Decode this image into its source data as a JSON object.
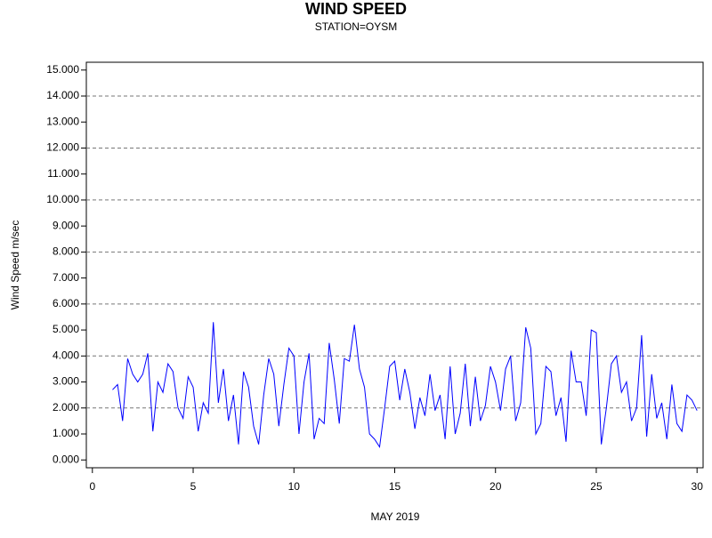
{
  "chart_data": {
    "type": "line",
    "title": "WIND SPEED",
    "subtitle": "STATION=OYSM",
    "x_label": "MAY 2019",
    "y_label": "Wind Speed m/sec",
    "xlim": [
      -0.3,
      30.3
    ],
    "xticks": [
      0,
      5,
      10,
      15,
      20,
      25,
      30
    ],
    "ylim": [
      -0.3,
      15.3
    ],
    "yticks": [
      {
        "value": 0,
        "label": "0.000"
      },
      {
        "value": 1,
        "label": "1.000"
      },
      {
        "value": 2,
        "label": "2.000"
      },
      {
        "value": 3,
        "label": "3.000"
      },
      {
        "value": 4,
        "label": "4.000"
      },
      {
        "value": 5,
        "label": "5.000"
      },
      {
        "value": 6,
        "label": "6.000"
      },
      {
        "value": 7,
        "label": "7.000"
      },
      {
        "value": 8,
        "label": "8.000"
      },
      {
        "value": 9,
        "label": "9.000"
      },
      {
        "value": 10,
        "label": "10.000"
      },
      {
        "value": 11,
        "label": "11.000"
      },
      {
        "value": 12,
        "label": "12.000"
      },
      {
        "value": 13,
        "label": "13.000"
      },
      {
        "value": 14,
        "label": "14.000"
      },
      {
        "value": 15,
        "label": "15.000"
      }
    ],
    "grid_every": 2,
    "grid": true,
    "series": [
      {
        "color": "#0000ff",
        "x": [
          1,
          1.25,
          1.5,
          1.75,
          2,
          2.25,
          2.5,
          2.75,
          3,
          3.25,
          3.5,
          3.75,
          4,
          4.25,
          4.5,
          4.75,
          5,
          5.25,
          5.5,
          5.75,
          6,
          6.25,
          6.5,
          6.75,
          7,
          7.25,
          7.5,
          7.75,
          8,
          8.25,
          8.5,
          8.75,
          9,
          9.25,
          9.5,
          9.75,
          10,
          10.25,
          10.5,
          10.75,
          11,
          11.25,
          11.5,
          11.75,
          12,
          12.25,
          12.5,
          12.75,
          13,
          13.25,
          13.5,
          13.75,
          14,
          14.25,
          14.5,
          14.75,
          15,
          15.25,
          15.5,
          15.75,
          16,
          16.25,
          16.5,
          16.75,
          17,
          17.25,
          17.5,
          17.75,
          18,
          18.25,
          18.5,
          18.75,
          19,
          19.25,
          19.5,
          19.75,
          20,
          20.25,
          20.5,
          20.75,
          21,
          21.25,
          21.5,
          21.75,
          22,
          22.25,
          22.5,
          22.75,
          23,
          23.25,
          23.5,
          23.75,
          24,
          24.25,
          24.5,
          24.75,
          25,
          25.25,
          25.5,
          25.75,
          26,
          26.25,
          26.5,
          26.75,
          27,
          27.25,
          27.5,
          27.75,
          28,
          28.25,
          28.5,
          28.75,
          29,
          29.25,
          29.5,
          29.75,
          30
        ],
        "values": [
          2.7,
          2.9,
          1.5,
          3.9,
          3.3,
          3.0,
          3.3,
          4.1,
          1.1,
          3.0,
          2.6,
          3.7,
          3.4,
          2.0,
          1.6,
          3.2,
          2.8,
          1.1,
          2.2,
          1.8,
          5.3,
          2.2,
          3.5,
          1.5,
          2.5,
          0.6,
          3.4,
          2.8,
          1.3,
          0.6,
          2.5,
          3.9,
          3.3,
          1.3,
          2.9,
          4.3,
          4.0,
          1.0,
          3.0,
          4.1,
          0.8,
          1.6,
          1.4,
          4.5,
          3.1,
          1.4,
          3.9,
          3.8,
          5.2,
          3.5,
          2.8,
          1.0,
          0.8,
          0.5,
          2.0,
          3.6,
          3.8,
          2.3,
          3.5,
          2.6,
          1.2,
          2.4,
          1.7,
          3.3,
          1.9,
          2.5,
          0.8,
          3.6,
          1.0,
          1.8,
          3.7,
          1.3,
          3.2,
          1.5,
          2.1,
          3.6,
          3.0,
          1.9,
          3.5,
          4.0,
          1.5,
          2.2,
          5.1,
          4.3,
          1.0,
          1.4,
          3.6,
          3.4,
          1.7,
          2.4,
          0.7,
          4.2,
          3.0,
          3.0,
          1.7,
          5.0,
          4.9,
          0.6,
          2.0,
          3.7,
          4.0,
          2.6,
          3.0,
          1.5,
          2.0,
          4.8,
          0.9,
          3.3,
          1.6,
          2.2,
          0.8,
          2.9,
          1.4,
          1.1,
          2.5,
          2.3,
          1.9
        ]
      }
    ]
  }
}
